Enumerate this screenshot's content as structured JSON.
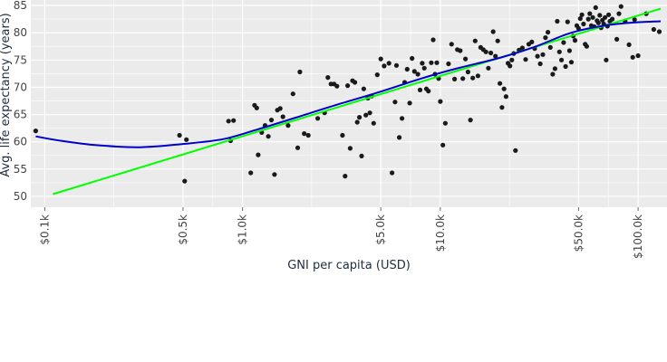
{
  "chart_data": {
    "type": "scatter",
    "title": "",
    "xlabel": "GNI per capita (USD)",
    "ylabel": "Avg. life expectancy (years)",
    "x_scale": "log",
    "xlim": [
      85,
      140000
    ],
    "ylim": [
      48,
      86
    ],
    "x_ticks": [
      {
        "value": 100,
        "label": "$0.1k"
      },
      {
        "value": 500,
        "label": "$0.5k"
      },
      {
        "value": 1000,
        "label": "$1.0k"
      },
      {
        "value": 5000,
        "label": "$5.0k"
      },
      {
        "value": 10000,
        "label": "$10.0k"
      },
      {
        "value": 50000,
        "label": "$50.0k"
      },
      {
        "value": 100000,
        "label": "$100.0k"
      }
    ],
    "y_ticks": [
      {
        "value": 50,
        "label": "50"
      },
      {
        "value": 55,
        "label": "55"
      },
      {
        "value": 60,
        "label": "60"
      },
      {
        "value": 65,
        "label": "65"
      },
      {
        "value": 70,
        "label": "70"
      },
      {
        "value": 75,
        "label": "75"
      },
      {
        "value": 80,
        "label": "80"
      },
      {
        "value": 85,
        "label": "85"
      }
    ],
    "grid": true,
    "colors": {
      "background": "#ebebeb",
      "grid": "#ffffff",
      "points": "#1a1a1a",
      "linear_fit": "#00ff00",
      "smooth_fit": "#0000cc"
    },
    "series": [
      {
        "kind": "points",
        "points": [
          [
            90,
            62
          ],
          [
            480,
            61.2
          ],
          [
            520,
            60.4
          ],
          [
            510,
            52.8
          ],
          [
            850,
            63.8
          ],
          [
            900,
            63.9
          ],
          [
            870,
            60.2
          ],
          [
            1100,
            54.3
          ],
          [
            1200,
            57.6
          ],
          [
            1150,
            66.7
          ],
          [
            1180,
            66.2
          ],
          [
            1250,
            61.7
          ],
          [
            1300,
            63
          ],
          [
            1350,
            61
          ],
          [
            1400,
            64
          ],
          [
            1450,
            54
          ],
          [
            1500,
            65.8
          ],
          [
            1550,
            66.1
          ],
          [
            1600,
            64.6
          ],
          [
            1700,
            63
          ],
          [
            1800,
            68.8
          ],
          [
            1900,
            58.9
          ],
          [
            1950,
            72.8
          ],
          [
            2050,
            61.5
          ],
          [
            2150,
            61.2
          ],
          [
            2400,
            64.3
          ],
          [
            2600,
            65.3
          ],
          [
            2700,
            71.8
          ],
          [
            2800,
            70.6
          ],
          [
            2900,
            70.6
          ],
          [
            3000,
            70.2
          ],
          [
            3200,
            61.2
          ],
          [
            3300,
            53.7
          ],
          [
            3400,
            70.3
          ],
          [
            3500,
            58.8
          ],
          [
            3600,
            71.2
          ],
          [
            3700,
            70.9
          ],
          [
            3800,
            63.6
          ],
          [
            3900,
            64.5
          ],
          [
            4000,
            57.4
          ],
          [
            4100,
            69.7
          ],
          [
            4200,
            64.9
          ],
          [
            4300,
            68
          ],
          [
            4400,
            65.3
          ],
          [
            4500,
            68.4
          ],
          [
            4600,
            63.4
          ],
          [
            4800,
            72.3
          ],
          [
            5000,
            75.2
          ],
          [
            5200,
            73.9
          ],
          [
            5500,
            74.4
          ],
          [
            5700,
            54.3
          ],
          [
            5900,
            67.3
          ],
          [
            6000,
            74
          ],
          [
            6200,
            60.8
          ],
          [
            6400,
            64.3
          ],
          [
            6600,
            70.9
          ],
          [
            6800,
            73.3
          ],
          [
            7000,
            67.1
          ],
          [
            7200,
            75.3
          ],
          [
            7400,
            72.9
          ],
          [
            7700,
            72.4
          ],
          [
            7900,
            69.5
          ],
          [
            8100,
            74.4
          ],
          [
            8300,
            73.5
          ],
          [
            8500,
            69.7
          ],
          [
            8700,
            69.3
          ],
          [
            9000,
            74.5
          ],
          [
            9200,
            78.7
          ],
          [
            9400,
            72.4
          ],
          [
            9600,
            74.5
          ],
          [
            9800,
            71.6
          ],
          [
            10000,
            67.4
          ],
          [
            10300,
            59.4
          ],
          [
            10600,
            63.4
          ],
          [
            11000,
            74.3
          ],
          [
            11400,
            77.9
          ],
          [
            11800,
            71.5
          ],
          [
            12200,
            76.9
          ],
          [
            12600,
            76.7
          ],
          [
            13000,
            71.6
          ],
          [
            13400,
            75.2
          ],
          [
            13800,
            72.8
          ],
          [
            14200,
            64
          ],
          [
            14600,
            71.7
          ],
          [
            15000,
            78.5
          ],
          [
            15500,
            72.1
          ],
          [
            16000,
            77.3
          ],
          [
            16500,
            76.9
          ],
          [
            17000,
            76.5
          ],
          [
            17500,
            73.5
          ],
          [
            18000,
            76.3
          ],
          [
            18500,
            80.2
          ],
          [
            19000,
            75.7
          ],
          [
            19500,
            78.5
          ],
          [
            20000,
            70.7
          ],
          [
            20500,
            66.3
          ],
          [
            21000,
            69.7
          ],
          [
            21500,
            68.3
          ],
          [
            22000,
            74.4
          ],
          [
            22500,
            73.9
          ],
          [
            23000,
            75
          ],
          [
            23500,
            76.2
          ],
          [
            24000,
            58.4
          ],
          [
            25000,
            76.8
          ],
          [
            26000,
            77.2
          ],
          [
            27000,
            75.1
          ],
          [
            28000,
            77.9
          ],
          [
            29000,
            78.3
          ],
          [
            30000,
            77.1
          ],
          [
            31000,
            75.7
          ],
          [
            32000,
            74.3
          ],
          [
            33000,
            76
          ],
          [
            34000,
            79.1
          ],
          [
            35000,
            80.1
          ],
          [
            36000,
            77.3
          ],
          [
            37000,
            72.4
          ],
          [
            38000,
            73.4
          ],
          [
            39000,
            82.1
          ],
          [
            40000,
            76.5
          ],
          [
            41000,
            75
          ],
          [
            42000,
            78.2
          ],
          [
            43000,
            73.8
          ],
          [
            44000,
            82
          ],
          [
            45000,
            76.7
          ],
          [
            46000,
            74.6
          ],
          [
            47000,
            79.4
          ],
          [
            48000,
            78.6
          ],
          [
            49000,
            81.3
          ],
          [
            50000,
            80.8
          ],
          [
            51000,
            82.6
          ],
          [
            52000,
            83.3
          ],
          [
            53000,
            81.6
          ],
          [
            54000,
            77.9
          ],
          [
            55000,
            77.5
          ],
          [
            56000,
            82.5
          ],
          [
            57000,
            83.5
          ],
          [
            58000,
            81.3
          ],
          [
            59000,
            82.8
          ],
          [
            60000,
            81.1
          ],
          [
            61000,
            84.6
          ],
          [
            62000,
            82.2
          ],
          [
            63000,
            81.8
          ],
          [
            64000,
            83.2
          ],
          [
            65000,
            80.9
          ],
          [
            66000,
            82.3
          ],
          [
            67000,
            81.6
          ],
          [
            68000,
            82.8
          ],
          [
            69000,
            75
          ],
          [
            70000,
            81.2
          ],
          [
            71000,
            83.3
          ],
          [
            72000,
            82.1
          ],
          [
            74000,
            82.5
          ],
          [
            78000,
            78.8
          ],
          [
            80000,
            83.5
          ],
          [
            82000,
            84.8
          ],
          [
            86000,
            82.1
          ],
          [
            90000,
            77.8
          ],
          [
            94000,
            75.5
          ],
          [
            96000,
            82.4
          ],
          [
            100000,
            75.8
          ],
          [
            110000,
            83.5
          ],
          [
            120000,
            80.6
          ],
          [
            128000,
            80.2
          ]
        ]
      },
      {
        "kind": "linear_fit",
        "points": [
          [
            110,
            50.4
          ],
          [
            130000,
            84.4
          ]
        ]
      },
      {
        "kind": "smooth_fit",
        "points": [
          [
            90,
            61
          ],
          [
            120,
            60.2
          ],
          [
            180,
            59.4
          ],
          [
            300,
            59
          ],
          [
            500,
            59.6
          ],
          [
            800,
            60.5
          ],
          [
            1200,
            62.3
          ],
          [
            2000,
            64.8
          ],
          [
            3000,
            66.8
          ],
          [
            5000,
            69.2
          ],
          [
            8000,
            71.6
          ],
          [
            12000,
            73.4
          ],
          [
            20000,
            75.4
          ],
          [
            30000,
            77.4
          ],
          [
            45000,
            79.9
          ],
          [
            65000,
            81.2
          ],
          [
            90000,
            81.8
          ],
          [
            130000,
            82.1
          ]
        ]
      }
    ]
  }
}
